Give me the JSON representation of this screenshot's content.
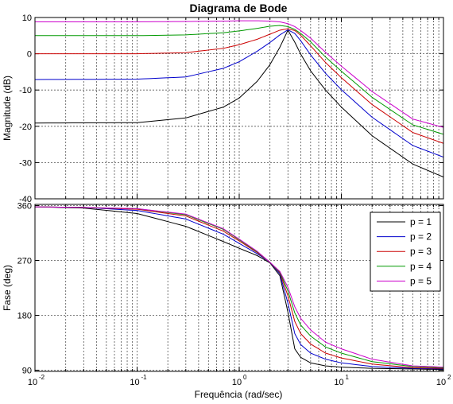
{
  "title": "Diagrama de Bode",
  "x_label": "Frequência  (rad/sec)",
  "chart_data": [
    {
      "type": "line",
      "name": "magnitude",
      "ylabel": "Magnitude (dB)",
      "xscale": "log",
      "xlim": [
        0.01,
        100
      ],
      "ylim": [
        -40,
        10
      ],
      "yticks": [
        -40,
        -30,
        -20,
        -10,
        0,
        10
      ],
      "grid": true,
      "series": [
        {
          "name": "p = 1",
          "color": "#000000",
          "x": [
            0.01,
            0.1,
            0.3,
            0.7,
            1,
            1.5,
            2,
            2.5,
            3,
            3.5,
            4,
            5,
            7,
            10,
            20,
            50,
            100
          ],
          "y": [
            -19.1,
            -19,
            -17.7,
            -14.7,
            -12.2,
            -7.6,
            -3,
            1.8,
            6.5,
            3.2,
            -0.1,
            -4.7,
            -10,
            -14.7,
            -22.6,
            -30.4,
            -34
          ]
        },
        {
          "name": "p = 2",
          "color": "#0000cc",
          "x": [
            0.01,
            0.1,
            0.3,
            0.7,
            1,
            1.5,
            2,
            2.5,
            3,
            3.5,
            4,
            5,
            7,
            10,
            20,
            50,
            100
          ],
          "y": [
            -7.1,
            -7,
            -6.4,
            -4,
            -2.2,
            0.7,
            3.1,
            5.2,
            6.6,
            5.6,
            3.6,
            -0.3,
            -5.4,
            -9.9,
            -17.5,
            -25.3,
            -28.5
          ]
        },
        {
          "name": "p = 3",
          "color": "#cc0000",
          "x": [
            0.01,
            0.1,
            0.3,
            0.7,
            1,
            1.5,
            2,
            2.5,
            3,
            3.5,
            4,
            5,
            7,
            10,
            20,
            50,
            100
          ],
          "y": [
            0,
            0,
            0.3,
            1.5,
            2.5,
            4,
            5.4,
            6.5,
            6.9,
            6.4,
            5.1,
            2.2,
            -2.4,
            -6.6,
            -14,
            -21.7,
            -24.7
          ]
        },
        {
          "name": "p = 4",
          "color": "#009900",
          "x": [
            0.01,
            0.1,
            0.3,
            0.7,
            1,
            1.5,
            2,
            2.5,
            3,
            3.5,
            4,
            5,
            7,
            10,
            20,
            50,
            100
          ],
          "y": [
            5,
            5,
            5.2,
            5.8,
            6.3,
            7,
            7.6,
            7.8,
            7.5,
            6.7,
            5.6,
            3.3,
            -0.9,
            -4.8,
            -12,
            -19.6,
            -22.2
          ]
        },
        {
          "name": "p = 5",
          "color": "#cc00cc",
          "x": [
            0.01,
            0.1,
            0.3,
            0.7,
            1,
            1.5,
            2,
            2.5,
            3,
            3.5,
            4,
            5,
            7,
            10,
            20,
            50,
            100
          ],
          "y": [
            8.8,
            8.8,
            8.9,
            9,
            9.1,
            9.1,
            9,
            8.8,
            8.3,
            7.5,
            6.4,
            4.3,
            0.4,
            -3.4,
            -10.4,
            -18,
            -20.3
          ]
        }
      ]
    },
    {
      "type": "line",
      "name": "phase",
      "ylabel": "Fase (deg)",
      "xlabel": "Frequência  (rad/sec)",
      "xscale": "log",
      "xlim": [
        0.01,
        100
      ],
      "ylim": [
        88,
        362
      ],
      "yticks": [
        90,
        180,
        270,
        360
      ],
      "xticks": [
        0.01,
        0.1,
        1,
        10,
        100
      ],
      "grid": true,
      "legend_position": "top-right",
      "series": [
        {
          "name": "p = 1",
          "color": "#000000",
          "x": [
            0.01,
            0.03,
            0.1,
            0.3,
            0.7,
            1,
            1.5,
            2,
            2.5,
            3,
            3.5,
            4,
            5,
            7,
            10,
            20,
            50,
            100
          ],
          "y": [
            358,
            356,
            347,
            326,
            301,
            290,
            278,
            266,
            245,
            185,
            125,
            111,
            102,
            97,
            95,
            93,
            92,
            91
          ]
        },
        {
          "name": "p = 2",
          "color": "#0000cc",
          "x": [
            0.01,
            0.03,
            0.1,
            0.3,
            0.7,
            1,
            1.5,
            2,
            2.5,
            3,
            3.5,
            4,
            5,
            7,
            10,
            20,
            50,
            100
          ],
          "y": [
            358,
            357,
            352,
            338,
            313,
            298,
            281,
            267,
            248,
            200,
            150,
            132,
            118,
            108,
            102,
            96,
            93,
            92
          ]
        },
        {
          "name": "p = 3",
          "color": "#cc0000",
          "x": [
            0.01,
            0.03,
            0.1,
            0.3,
            0.7,
            1,
            1.5,
            2,
            2.5,
            3,
            3.5,
            4,
            5,
            7,
            10,
            20,
            50,
            100
          ],
          "y": [
            358,
            357,
            354,
            343,
            318,
            302,
            283,
            267,
            250,
            212,
            170,
            150,
            133,
            118,
            110,
            100,
            94,
            93
          ]
        },
        {
          "name": "p = 4",
          "color": "#009900",
          "x": [
            0.01,
            0.03,
            0.1,
            0.3,
            0.7,
            1,
            1.5,
            2,
            2.5,
            3,
            3.5,
            4,
            5,
            7,
            10,
            20,
            50,
            100
          ],
          "y": [
            358,
            357,
            355,
            345,
            321,
            304,
            284,
            267,
            251,
            220,
            184,
            164,
            146,
            128,
            118,
            104,
            96,
            94
          ]
        },
        {
          "name": "p = 5",
          "color": "#cc00cc",
          "x": [
            0.01,
            0.03,
            0.1,
            0.3,
            0.7,
            1,
            1.5,
            2,
            2.5,
            3,
            3.5,
            4,
            5,
            7,
            10,
            20,
            50,
            100
          ],
          "y": [
            358,
            357,
            355,
            346,
            322,
            305,
            285,
            267,
            252,
            226,
            194,
            175,
            156,
            136,
            125,
            108,
            97,
            95
          ]
        }
      ]
    }
  ]
}
